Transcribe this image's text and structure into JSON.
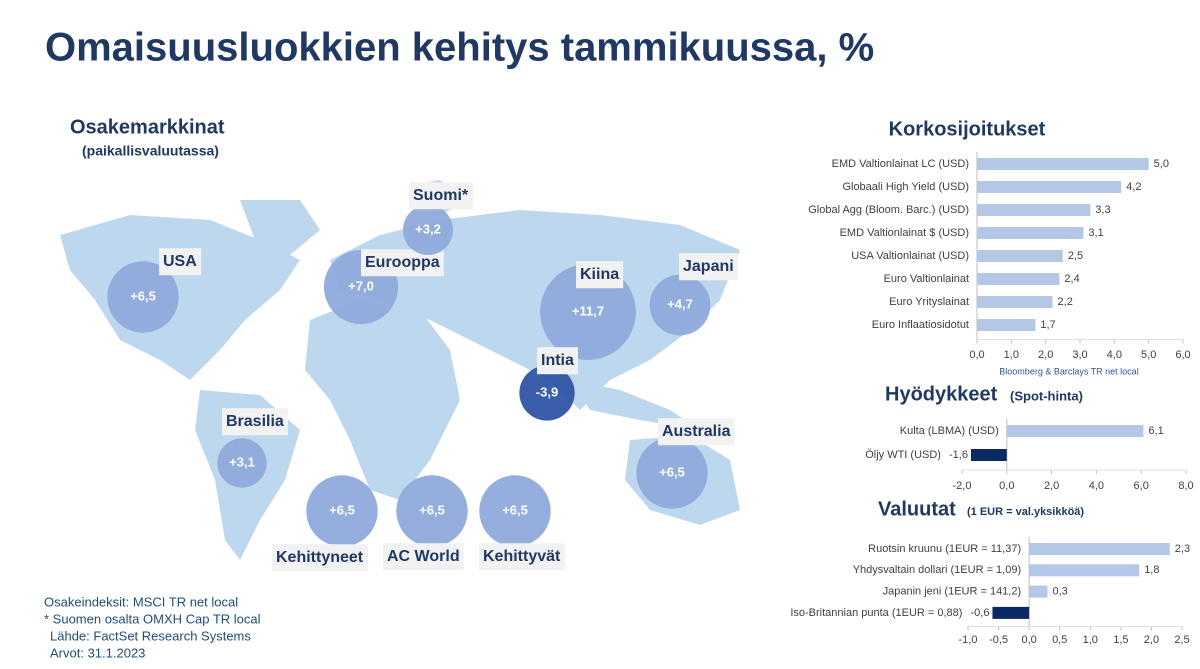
{
  "title": "Omaisuusluokkien kehitys tammikuussa, %",
  "footnotes": [
    "Osakeindeksit: MSCI TR net local",
    "* Suomen osalta OMXH Cap TR local",
    "Lähde: FactSet Research Systems",
    "Arvot: 31.1.2023"
  ],
  "chart_data": [
    {
      "type": "bubble-map",
      "title": "Osakemarkkinat",
      "subtitle": "(paikallisvaluutassa)",
      "categories": [
        "USA",
        "Eurooppa",
        "Suomi*",
        "Kiina",
        "Japani",
        "Intia",
        "Brasilia",
        "Australia",
        "Kehittyneet",
        "AC World",
        "Kehittyvät"
      ],
      "values": [
        6.5,
        7.0,
        3.2,
        11.7,
        4.7,
        -3.9,
        3.1,
        6.5,
        6.5,
        6.5,
        6.5
      ],
      "value_labels": [
        "+6,5",
        "+7,0",
        "+3,2",
        "+11,7",
        "+4,7",
        "-3,9",
        "+3,1",
        "+6,5",
        "+6,5",
        "+6,5",
        "+6,5"
      ],
      "color": "#8faadc",
      "negative_color": "#2f55a4"
    },
    {
      "type": "hbar",
      "title": "Korkosijoitukset",
      "note": "Bloomberg & Barclays TR net local",
      "categories": [
        "EMD Valtionlainat LC (USD)",
        "Globaali High Yield (USD)",
        "Global Agg (Bloom. Barc.) (USD)",
        "EMD Valtionlainat $ (USD)",
        "USA Valtionlainat (USD)",
        "Euro Valtionlainat",
        "Euro Yrityslainat",
        "Euro Inflaatiosidotut"
      ],
      "values": [
        5.0,
        4.2,
        3.3,
        3.1,
        2.5,
        2.4,
        2.2,
        1.7
      ],
      "value_labels": [
        "5,0",
        "4,2",
        "3,3",
        "3,1",
        "2,5",
        "2,4",
        "2,2",
        "1,7"
      ],
      "xlim": [
        0,
        6
      ],
      "xticks": [
        {
          "value": 0,
          "label": "0,0"
        },
        {
          "value": 1,
          "label": "1,0"
        },
        {
          "value": 2,
          "label": "2,0"
        },
        {
          "value": 3,
          "label": "3,0"
        },
        {
          "value": 4,
          "label": "4,0"
        },
        {
          "value": 5,
          "label": "5,0"
        },
        {
          "value": 6,
          "label": "6,0"
        }
      ],
      "color": "#b4c7e7",
      "negative_color": "#0b2a63"
    },
    {
      "type": "hbar",
      "title": "Hyödykkeet",
      "subtitle": "(Spot-hinta)",
      "categories": [
        "Kulta (LBMA) (USD)",
        "Öljy WTI (USD)"
      ],
      "values": [
        6.1,
        -1.6
      ],
      "value_labels": [
        "6,1",
        "-1,6"
      ],
      "xlim": [
        -2,
        8
      ],
      "xticks": [
        {
          "value": -2,
          "label": "-2,0"
        },
        {
          "value": 0,
          "label": "0,0"
        },
        {
          "value": 2,
          "label": "2,0"
        },
        {
          "value": 4,
          "label": "4,0"
        },
        {
          "value": 6,
          "label": "6,0"
        },
        {
          "value": 8,
          "label": "8,0"
        }
      ],
      "color": "#b4c7e7",
      "negative_color": "#0b2a63"
    },
    {
      "type": "hbar",
      "title": "Valuutat",
      "subtitle": "(1 EUR = val.yksikköä)",
      "categories": [
        "Ruotsin kruunu (1EUR = 11,37)",
        "Yhdysvaltain dollari (1EUR = 1,09)",
        "Japanin jeni (1EUR = 141,2)",
        "Iso-Britannian punta (1EUR = 0,88)"
      ],
      "values": [
        2.3,
        1.8,
        0.3,
        -0.6
      ],
      "value_labels": [
        "2,3",
        "1,8",
        "0,3",
        "-0,6"
      ],
      "xlim": [
        -1,
        2.5
      ],
      "xticks": [
        {
          "value": -1,
          "label": "-1,0"
        },
        {
          "value": -0.5,
          "label": "-0,5"
        },
        {
          "value": 0,
          "label": "0,0"
        },
        {
          "value": 0.5,
          "label": "0,5"
        },
        {
          "value": 1,
          "label": "1,0"
        },
        {
          "value": 1.5,
          "label": "1,5"
        },
        {
          "value": 2,
          "label": "2,0"
        },
        {
          "value": 2.5,
          "label": "2,5"
        }
      ],
      "color": "#b4c7e7",
      "negative_color": "#0b2a63"
    }
  ]
}
